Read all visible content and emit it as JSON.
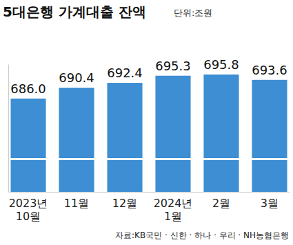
{
  "chart_data": {
    "type": "bar",
    "title": "5대은행 가계대출 잔액",
    "subtitle": "단위:조원",
    "source": "자료:KB국민 · 신한 · 하나 · 우리 · NH농협은행",
    "categories": [
      "2023년 10월",
      "11월",
      "12월",
      "2024년 1월",
      "2월",
      "3월"
    ],
    "values": [
      686.0,
      690.4,
      692.4,
      695.3,
      695.8,
      693.6
    ],
    "value_labels": [
      "686.0",
      "690.4",
      "692.4",
      "695.3",
      "695.8",
      "693.6"
    ],
    "color": "#3d8ed3",
    "ylim": [
      648,
      700
    ],
    "yticks": [],
    "tick_labels": "x",
    "data_labels": true,
    "grid": false
  }
}
